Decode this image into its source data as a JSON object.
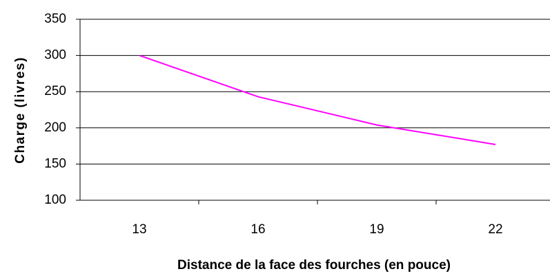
{
  "chart_data": {
    "type": "line",
    "xlabel": "Distance de la face des fourches (en pouce)",
    "ylabel": "Charge (livres)",
    "categories": [
      "13",
      "16",
      "19",
      "22"
    ],
    "values": [
      300,
      243,
      204,
      177
    ],
    "color": "#ff00ff",
    "ylim": [
      100,
      350
    ],
    "yticks": [
      100,
      150,
      200,
      250,
      300,
      350
    ],
    "grid": true
  }
}
